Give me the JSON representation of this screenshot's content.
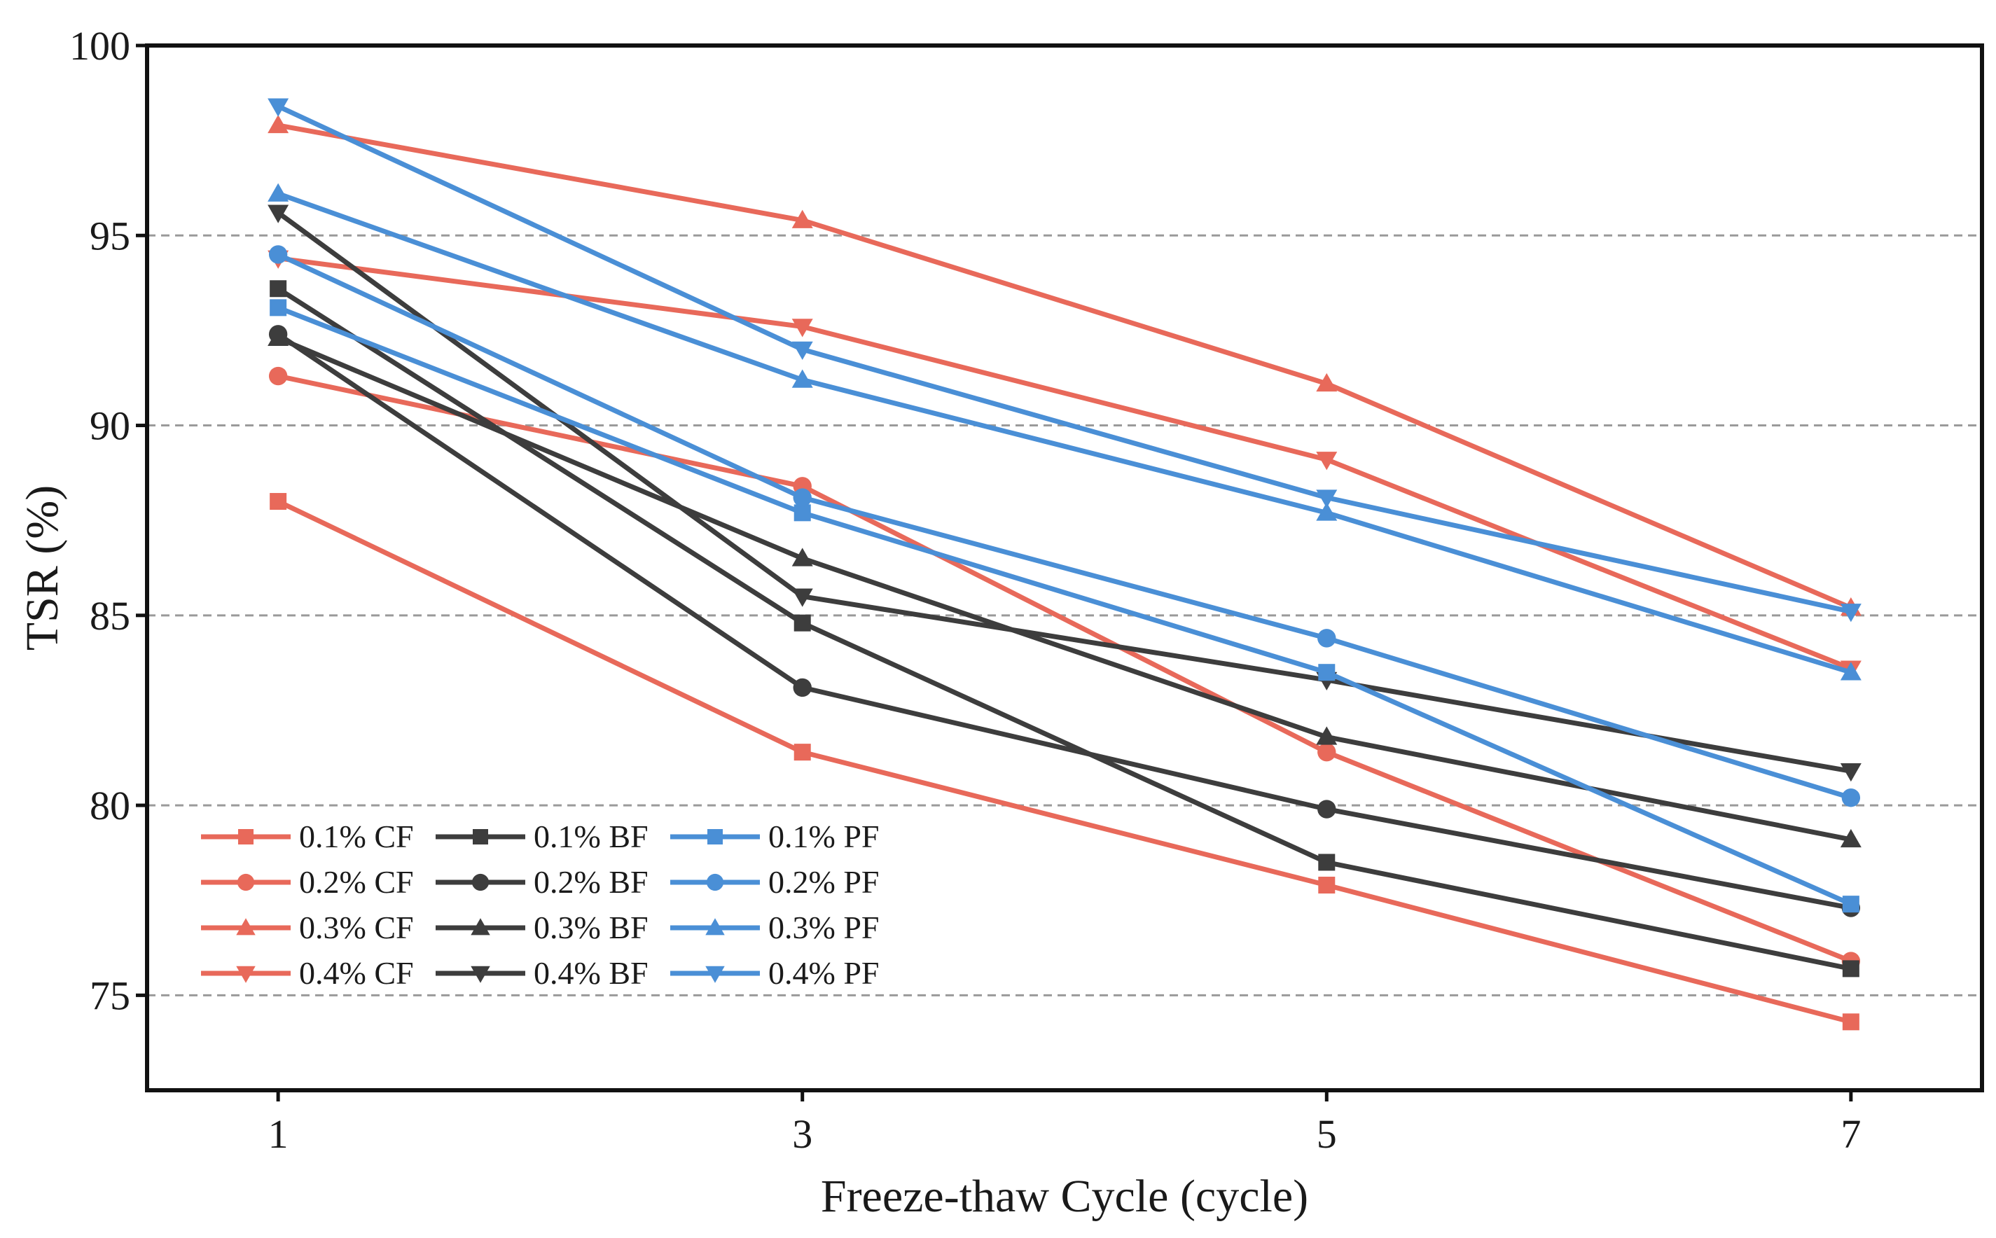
{
  "chart_data": {
    "type": "line",
    "title": "",
    "xlabel": "Freeze-thaw Cycle (cycle)",
    "ylabel": "TSR (%)",
    "x": [
      1,
      3,
      5,
      7
    ],
    "x_tick_labels": [
      "1",
      "3",
      "5",
      "7"
    ],
    "xlim": [
      0.5,
      7.5
    ],
    "ylim": [
      72.5,
      100
    ],
    "y_ticks": [
      75,
      80,
      85,
      90,
      95,
      100
    ],
    "y_tick_labels": [
      "75",
      "80",
      "85",
      "90",
      "95",
      "100"
    ],
    "grid": "horizontal dashed at 75, 80, 85, 90, 95",
    "legend_position": "lower-left",
    "colors": {
      "CF": "#e8695a",
      "BF": "#3d3d3d",
      "PF": "#4a8fd6"
    },
    "series": [
      {
        "name": "0.1% CF",
        "fiber": "CF",
        "marker": "square",
        "values": [
          88.0,
          81.4,
          77.9,
          74.3
        ]
      },
      {
        "name": "0.2% CF",
        "fiber": "CF",
        "marker": "circle",
        "values": [
          91.3,
          88.4,
          81.4,
          75.9
        ]
      },
      {
        "name": "0.3% CF",
        "fiber": "CF",
        "marker": "triangle-up",
        "values": [
          97.9,
          95.4,
          91.1,
          85.2
        ]
      },
      {
        "name": "0.4% CF",
        "fiber": "CF",
        "marker": "triangle-down",
        "values": [
          94.4,
          92.6,
          89.1,
          83.6
        ]
      },
      {
        "name": "0.1% BF",
        "fiber": "BF",
        "marker": "square",
        "values": [
          93.6,
          84.8,
          78.5,
          75.7
        ]
      },
      {
        "name": "0.2% BF",
        "fiber": "BF",
        "marker": "circle",
        "values": [
          92.4,
          83.1,
          79.9,
          77.3
        ]
      },
      {
        "name": "0.3% BF",
        "fiber": "BF",
        "marker": "triangle-up",
        "values": [
          92.3,
          86.5,
          81.8,
          79.1
        ]
      },
      {
        "name": "0.4% BF",
        "fiber": "BF",
        "marker": "triangle-down",
        "values": [
          95.6,
          85.5,
          83.3,
          80.9
        ]
      },
      {
        "name": "0.1% PF",
        "fiber": "PF",
        "marker": "square",
        "values": [
          93.1,
          87.7,
          83.5,
          77.4
        ]
      },
      {
        "name": "0.2% PF",
        "fiber": "PF",
        "marker": "circle",
        "values": [
          94.5,
          88.1,
          84.4,
          80.2
        ]
      },
      {
        "name": "0.3% PF",
        "fiber": "PF",
        "marker": "triangle-up",
        "values": [
          96.1,
          91.2,
          87.7,
          83.5
        ]
      },
      {
        "name": "0.4% PF",
        "fiber": "PF",
        "marker": "triangle-down",
        "values": [
          98.4,
          92.0,
          88.1,
          85.1
        ]
      }
    ]
  }
}
